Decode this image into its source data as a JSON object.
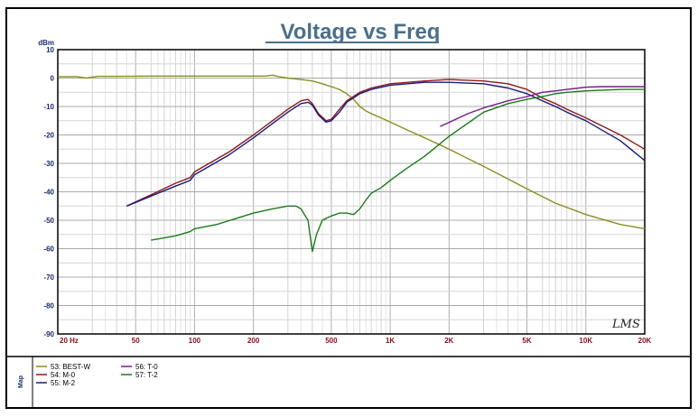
{
  "chart_data": {
    "type": "line",
    "title": "Voltage vs Freq",
    "ylabel": "dBm",
    "xscale": "log",
    "xlim": [
      20,
      20000
    ],
    "ylim": [
      -90,
      10
    ],
    "grid": true,
    "legend_position": "bottom",
    "yticks": [
      10,
      0,
      -10,
      -20,
      -30,
      -40,
      -50,
      -60,
      -70,
      -80,
      -90
    ],
    "ytick_labels": [
      "10",
      "0",
      "-10",
      "-20",
      "-30",
      "-40",
      "-50",
      "-60",
      "-70",
      "-80",
      "-90"
    ],
    "xticks": [
      20,
      50,
      100,
      200,
      500,
      1000,
      2000,
      5000,
      10000,
      20000
    ],
    "xtick_labels": [
      "20 Hz",
      "50",
      "100",
      "200",
      "500",
      "1K",
      "2K",
      "5K",
      "10K",
      "20K"
    ],
    "watermark": "LMS",
    "side_label": "Map",
    "series": [
      {
        "name": "53: BEST-W",
        "color": "#8c8c1e",
        "x": [
          20,
          25,
          28,
          32,
          40,
          60,
          100,
          150,
          200,
          230,
          250,
          270,
          300,
          350,
          400,
          450,
          500,
          550,
          600,
          650,
          700,
          750,
          800,
          900,
          1000,
          1200,
          1500,
          2000,
          3000,
          4000,
          5000,
          7000,
          10000,
          15000,
          20000
        ],
        "y": [
          0.5,
          0.5,
          0,
          0.6,
          0.6,
          0.7,
          0.7,
          0.7,
          0.7,
          0.7,
          1,
          0.5,
          0,
          -0.5,
          -1,
          -2,
          -3,
          -4,
          -5.5,
          -7.5,
          -10,
          -11.5,
          -12.5,
          -14,
          -15.5,
          -18,
          -21,
          -25,
          -31,
          -35.5,
          -39,
          -44,
          -48,
          -51.5,
          -53
        ]
      },
      {
        "name": "54: M-0",
        "color": "#8b1a1a",
        "x": [
          45,
          60,
          80,
          95,
          100,
          150,
          200,
          250,
          300,
          350,
          380,
          400,
          430,
          470,
          500,
          550,
          600,
          700,
          800,
          1000,
          1500,
          2000,
          3000,
          4000,
          5000,
          6000,
          7000,
          8000,
          10000,
          15000,
          20000
        ],
        "y": [
          -45,
          -41,
          -37,
          -35,
          -33,
          -26,
          -20,
          -15,
          -11,
          -8,
          -7.5,
          -9,
          -12.5,
          -15,
          -14.5,
          -11,
          -8,
          -5,
          -3.5,
          -2,
          -1,
          -0.5,
          -1,
          -2,
          -4,
          -7,
          -9,
          -11,
          -14,
          -20,
          -25
        ]
      },
      {
        "name": "55: M-2",
        "color": "#1a1a7a",
        "x": [
          45,
          60,
          80,
          95,
          100,
          150,
          200,
          250,
          300,
          350,
          380,
          400,
          430,
          470,
          500,
          550,
          600,
          700,
          800,
          1000,
          1500,
          2000,
          3000,
          4000,
          5000,
          6000,
          7000,
          8000,
          10000,
          15000,
          20000
        ],
        "y": [
          -45,
          -41.5,
          -38,
          -36,
          -34,
          -27,
          -21,
          -16,
          -12,
          -9,
          -8.5,
          -9.5,
          -13,
          -15.5,
          -15,
          -12,
          -8.5,
          -5.5,
          -4,
          -2.5,
          -1.5,
          -1.5,
          -2,
          -3.5,
          -5.5,
          -8,
          -10,
          -12,
          -15,
          -22,
          -29
        ]
      },
      {
        "name": "56: T-0",
        "color": "#7a1a8a",
        "x": [
          1800,
          2500,
          3000,
          4000,
          5000,
          6000,
          7000,
          8000,
          10000,
          12000,
          15000,
          20000
        ],
        "y": [
          -17,
          -12.5,
          -10.5,
          -8,
          -6.5,
          -5,
          -4.5,
          -4,
          -3.2,
          -3,
          -3,
          -3
        ]
      },
      {
        "name": "57: T-2",
        "color": "#1a7a1a",
        "x": [
          60,
          80,
          95,
          100,
          130,
          170,
          200,
          250,
          300,
          330,
          350,
          380,
          400,
          420,
          450,
          500,
          550,
          600,
          650,
          700,
          750,
          800,
          900,
          1000,
          1200,
          1500,
          2000,
          3000,
          4000,
          5000,
          6000,
          7000,
          8000,
          10000,
          15000,
          20000
        ],
        "y": [
          -57,
          -55.5,
          -54,
          -53,
          -51.5,
          -49,
          -47.5,
          -46,
          -45,
          -45,
          -46,
          -50,
          -61,
          -55,
          -50,
          -48.5,
          -47.5,
          -47.5,
          -48,
          -46,
          -43,
          -40.5,
          -38.5,
          -36,
          -32,
          -27.5,
          -20.5,
          -12,
          -9,
          -7.5,
          -6.5,
          -5.5,
          -5,
          -4.5,
          -4,
          -4
        ]
      }
    ]
  }
}
